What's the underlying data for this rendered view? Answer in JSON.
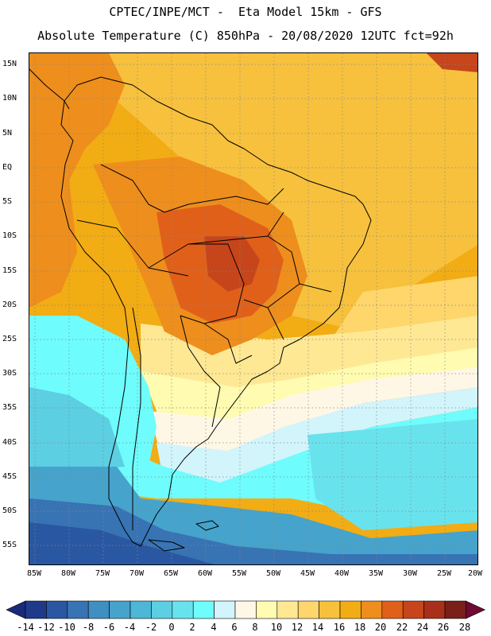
{
  "header": {
    "line1": "CPTEC/INPE/MCT -  Eta Model 15km - GFS",
    "line2": "Absolute Temperature (C) 850hPa - 20/08/2020 12UTC fct=92h"
  },
  "axes": {
    "lat_labels": [
      "15N",
      "10N",
      "5N",
      "EQ",
      "5S",
      "10S",
      "15S",
      "20S",
      "25S",
      "30S",
      "35S",
      "40S",
      "45S",
      "50S",
      "55S"
    ],
    "lon_labels": [
      "85W",
      "80W",
      "75W",
      "70W",
      "65W",
      "60W",
      "55W",
      "50W",
      "45W",
      "40W",
      "35W",
      "30W",
      "25W",
      "20W"
    ]
  },
  "colorbar": {
    "labels": [
      "-14",
      "-12",
      "-10",
      "-8",
      "-6",
      "-4",
      "-2",
      "0",
      "2",
      "4",
      "6",
      "8",
      "10",
      "12",
      "14",
      "16",
      "18",
      "20",
      "22",
      "24",
      "26",
      "28"
    ],
    "colors": [
      "#203a8a",
      "#2a57a2",
      "#3873b4",
      "#3f8fc2",
      "#46a3cb",
      "#4cb7d7",
      "#5ccfe2",
      "#68e3ee",
      "#6ffcfc",
      "#d2f4fb",
      "#fff7e6",
      "#fffbb0",
      "#fee894",
      "#fed66b",
      "#f7c13d",
      "#f2ac14",
      "#ee8e1c",
      "#e0601a",
      "#c6451a",
      "#a8301a",
      "#7a1f1a"
    ],
    "under_color": "#1a2a7a",
    "over_color": "#6e0b32"
  },
  "palette": {
    "ocean_east": "#e7a81c",
    "deep_south": "#2d5aa6",
    "border": "#000000"
  }
}
